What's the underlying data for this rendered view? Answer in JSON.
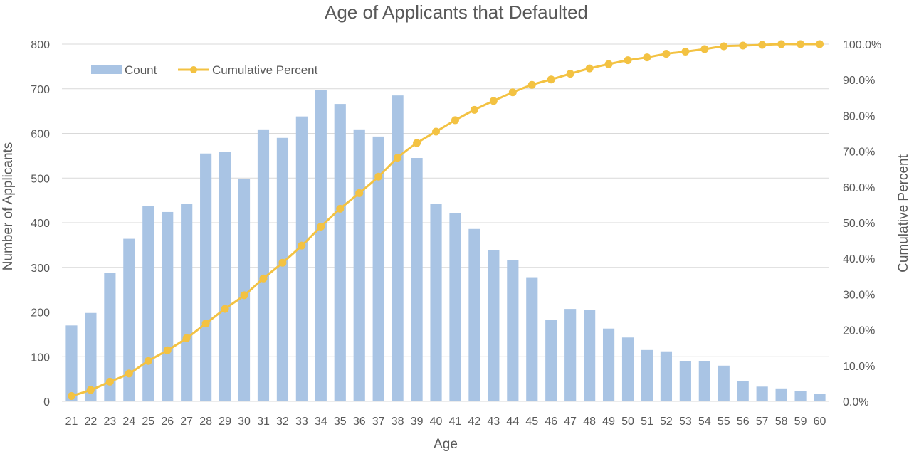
{
  "chart_data": {
    "type": "bar",
    "title": "Age of Applicants that Defaulted",
    "xlabel": "Age",
    "ylabel": "Number of Applicants",
    "y2label": "Cumulative Percent",
    "ylim": [
      0,
      800
    ],
    "y2lim": [
      0,
      100
    ],
    "yticks": [
      0,
      100,
      200,
      300,
      400,
      500,
      600,
      700,
      800
    ],
    "y2ticks": [
      "0.0%",
      "10.0%",
      "20.0%",
      "30.0%",
      "40.0%",
      "50.0%",
      "60.0%",
      "70.0%",
      "80.0%",
      "90.0%",
      "100.0%"
    ],
    "grid": true,
    "legend_position": "top-left",
    "categories": [
      "21",
      "22",
      "23",
      "24",
      "25",
      "26",
      "27",
      "28",
      "29",
      "30",
      "31",
      "32",
      "33",
      "34",
      "35",
      "36",
      "37",
      "38",
      "39",
      "40",
      "41",
      "42",
      "43",
      "44",
      "45",
      "46",
      "47",
      "48",
      "49",
      "50",
      "51",
      "52",
      "53",
      "54",
      "55",
      "56",
      "57",
      "58",
      "59",
      "60"
    ],
    "series": [
      {
        "name": "Count",
        "kind": "bar",
        "axis": "left",
        "color": "#a9c4e4",
        "values": [
          170,
          198,
          288,
          364,
          437,
          424,
          443,
          555,
          558,
          498,
          609,
          590,
          638,
          698,
          666,
          609,
          593,
          685,
          545,
          443,
          421,
          386,
          338,
          316,
          278,
          182,
          207,
          205,
          163,
          143,
          115,
          112,
          90,
          90,
          80,
          45,
          33,
          29,
          23,
          16
        ]
      },
      {
        "name": "Cumulative Percent",
        "kind": "line",
        "axis": "right",
        "color": "#f3c242",
        "values": [
          1.5,
          3.2,
          5.5,
          7.8,
          11.3,
          14.3,
          17.7,
          21.8,
          25.9,
          29.7,
          34.4,
          38.8,
          43.6,
          48.9,
          53.9,
          58.3,
          62.9,
          68.2,
          72.3,
          75.5,
          78.7,
          81.6,
          84.1,
          86.5,
          88.6,
          90.1,
          91.7,
          93.2,
          94.4,
          95.5,
          96.3,
          97.3,
          97.9,
          98.6,
          99.4,
          99.6,
          99.8,
          100.0,
          100.0,
          100.0
        ]
      }
    ]
  }
}
